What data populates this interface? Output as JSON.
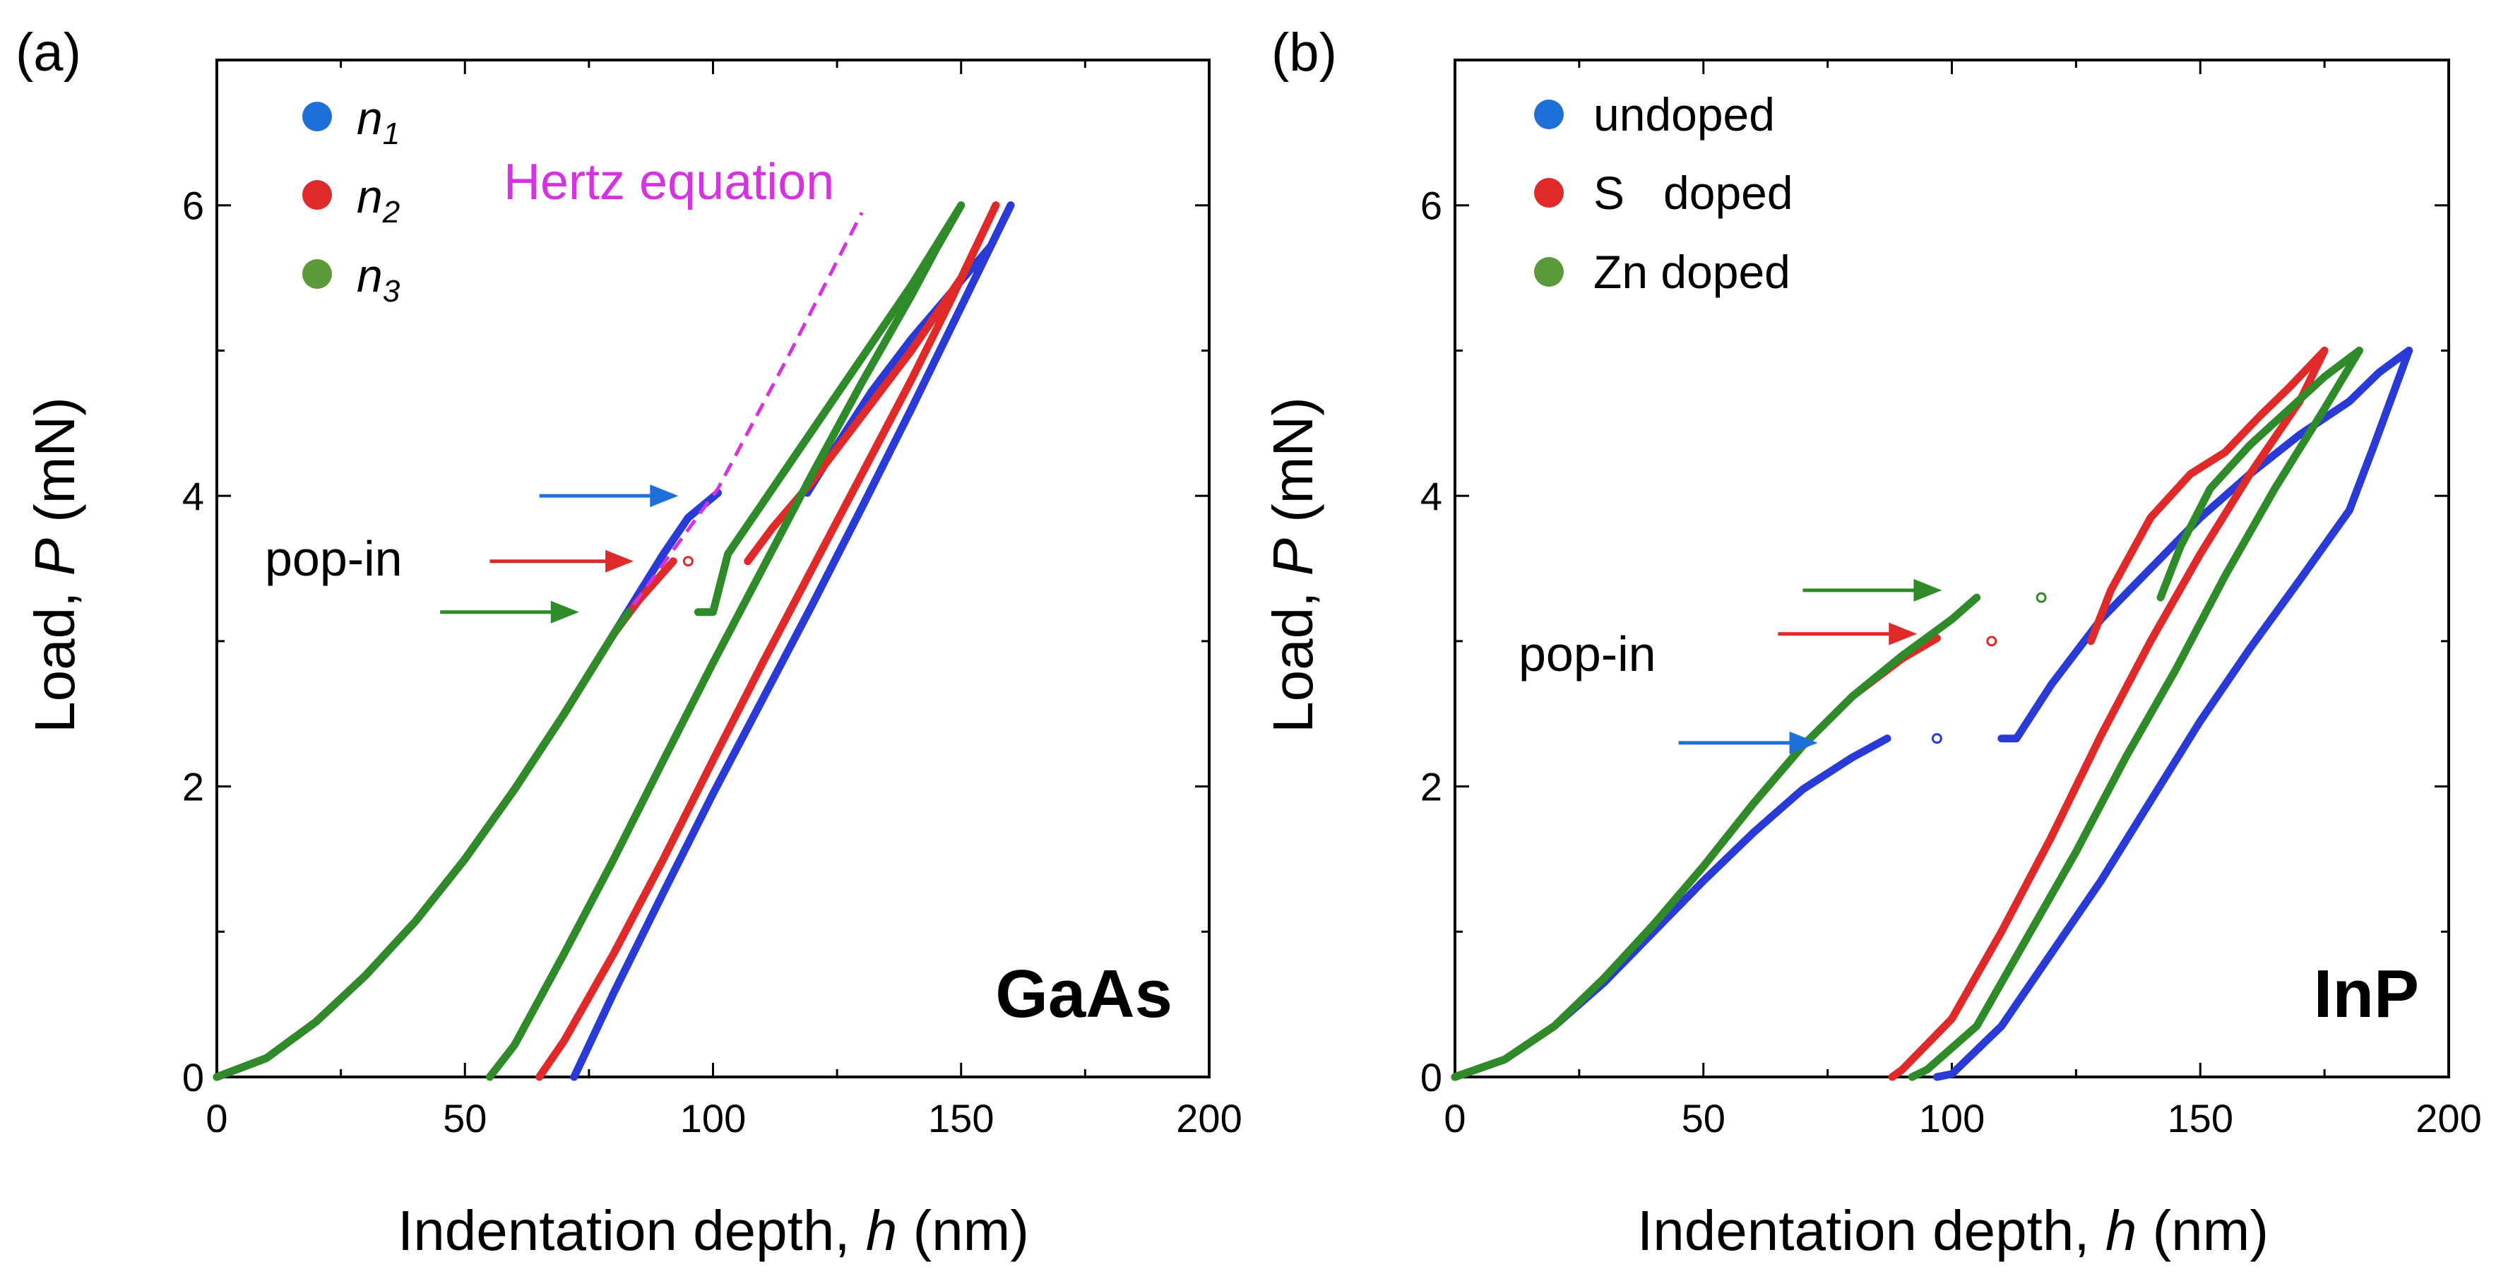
{
  "chart_data": [
    {
      "panel": "(a)",
      "type": "line",
      "material": "GaAs",
      "xlabel": "Indentation depth, h (nm)",
      "ylabel": "Load, P (mN)",
      "xlim": [
        0,
        200
      ],
      "ylim": [
        0,
        7
      ],
      "xticks": [
        0,
        50,
        100,
        150,
        200
      ],
      "yticks": [
        0,
        2,
        4,
        6
      ],
      "grid": false,
      "legend_position": "top-left",
      "legend": [
        {
          "label": "n",
          "sub": "1",
          "color": "#2a3ad6"
        },
        {
          "label": "n",
          "sub": "2",
          "color": "#e02a2a"
        },
        {
          "label": "n",
          "sub": "3",
          "color": "#2f8a2a"
        }
      ],
      "annotations": {
        "popin_label": "pop-in",
        "hertz_label": "Hertz equation",
        "hertz_line": {
          "x": [
            84,
            101,
            115,
            130
          ],
          "y": [
            3.25,
            4.05,
            4.95,
            5.95
          ],
          "color": "#d633e0"
        },
        "popin_arrows": [
          {
            "color": "#1e6fd8",
            "x0": 65,
            "x1": 93,
            "y": 4.0
          },
          {
            "color": "#e02a2a",
            "x0": 55,
            "x1": 84,
            "y": 3.55
          },
          {
            "color": "#2f8a2a",
            "x0": 45,
            "x1": 73,
            "y": 3.2
          }
        ]
      },
      "series": [
        {
          "name": "n1",
          "color": "#2a3ad6",
          "loading": {
            "x": [
              0,
              10,
              20,
              30,
              40,
              50,
              60,
              70,
              80,
              90,
              95,
              101
            ],
            "y": [
              0,
              0.13,
              0.38,
              0.7,
              1.07,
              1.5,
              1.98,
              2.5,
              3.05,
              3.6,
              3.85,
              4.02
            ]
          },
          "reload": {
            "x": [
              119,
              125,
              132,
              140,
              148,
              156,
              160
            ],
            "y": [
              4.02,
              4.35,
              4.72,
              5.08,
              5.4,
              5.72,
              6.0
            ]
          },
          "unloading": {
            "x": [
              160,
              150,
              140,
              130,
              120,
              110,
              100,
              90,
              80,
              72
            ],
            "y": [
              6.0,
              5.3,
              4.6,
              3.92,
              3.25,
              2.6,
              1.95,
              1.27,
              0.58,
              0
            ]
          }
        },
        {
          "name": "n2",
          "color": "#e02a2a",
          "loading": {
            "x": [
              0,
              10,
              20,
              30,
              40,
              50,
              60,
              70,
              80,
              85,
              92
            ],
            "y": [
              0,
              0.13,
              0.38,
              0.7,
              1.07,
              1.5,
              1.98,
              2.5,
              3.05,
              3.28,
              3.55
            ]
          },
          "gap_points": {
            "x": [
              95
            ],
            "y": [
              3.55
            ]
          },
          "reload": {
            "x": [
              107,
              112,
              120,
              130,
              140,
              150,
              157
            ],
            "y": [
              3.55,
              3.78,
              4.1,
              4.55,
              5.0,
              5.5,
              6.0
            ]
          },
          "unloading": {
            "x": [
              157,
              148,
              140,
              130,
              120,
              110,
              100,
              90,
              80,
              70,
              65
            ],
            "y": [
              6.0,
              5.35,
              4.8,
              4.15,
              3.5,
              2.85,
              2.18,
              1.5,
              0.85,
              0.25,
              0
            ]
          }
        },
        {
          "name": "n3",
          "color": "#2f8a2a",
          "loading": {
            "x": [
              0,
              10,
              20,
              30,
              40,
              50,
              60,
              70,
              80,
              83
            ],
            "y": [
              0,
              0.13,
              0.38,
              0.7,
              1.07,
              1.5,
              1.98,
              2.5,
              3.05,
              3.2
            ]
          },
          "reload": {
            "x": [
              97,
              100,
              103,
              110,
              120,
              130,
              140,
              150
            ],
            "y": [
              3.2,
              3.2,
              3.6,
              3.95,
              4.45,
              4.95,
              5.45,
              6.0
            ]
          },
          "unloading": {
            "x": [
              150,
              145,
              140,
              130,
              120,
              110,
              100,
              90,
              80,
              70,
              60,
              55
            ],
            "y": [
              6.0,
              5.7,
              5.38,
              4.78,
              4.15,
              3.5,
              2.85,
              2.18,
              1.5,
              0.85,
              0.22,
              0
            ]
          }
        }
      ]
    },
    {
      "panel": "(b)",
      "type": "line",
      "material": "InP",
      "xlabel": "Indentation depth, h (nm)",
      "ylabel": "Load, P (mN)",
      "xlim": [
        0,
        200
      ],
      "ylim": [
        0,
        7
      ],
      "xticks": [
        0,
        50,
        100,
        150,
        200
      ],
      "yticks": [
        0,
        2,
        4,
        6
      ],
      "grid": false,
      "legend_position": "top-left",
      "legend": [
        {
          "label": "undoped",
          "color": "#1e6fd8"
        },
        {
          "label": "S   doped",
          "color": "#e02a2a"
        },
        {
          "label": "Zn doped",
          "color": "#2f8a2a"
        }
      ],
      "annotations": {
        "popin_label": "pop-in",
        "popin_arrows": [
          {
            "color": "#2f8a2a",
            "x0": 70,
            "x1": 98,
            "y": 3.35
          },
          {
            "color": "#e02a2a",
            "x0": 65,
            "x1": 93,
            "y": 3.05
          },
          {
            "color": "#1e6fd8",
            "x0": 45,
            "x1": 73,
            "y": 2.3
          }
        ]
      },
      "series": [
        {
          "name": "undoped",
          "color": "#2a3ad6",
          "loading": {
            "x": [
              0,
              10,
              20,
              30,
              40,
              50,
              60,
              70,
              80,
              87
            ],
            "y": [
              0,
              0.12,
              0.35,
              0.65,
              1.0,
              1.35,
              1.68,
              1.98,
              2.2,
              2.33
            ]
          },
          "gap_points": {
            "x": [
              97
            ],
            "y": [
              2.33
            ]
          },
          "reload": {
            "x": [
              110,
              113,
              120,
              130,
              140,
              150,
              160,
              170,
              180,
              186,
              190,
              192
            ],
            "y": [
              2.33,
              2.33,
              2.7,
              3.15,
              3.5,
              3.85,
              4.15,
              4.42,
              4.65,
              4.85,
              4.95,
              5.0
            ]
          },
          "unloading": {
            "x": [
              192,
              185,
              180,
              170,
              160,
              150,
              140,
              130,
              120,
              110,
              100,
              97
            ],
            "y": [
              5.0,
              4.35,
              3.9,
              3.42,
              2.95,
              2.45,
              1.9,
              1.35,
              0.85,
              0.35,
              0.02,
              0
            ]
          }
        },
        {
          "name": "S doped",
          "color": "#e02a2a",
          "loading": {
            "x": [
              0,
              10,
              20,
              30,
              40,
              50,
              60,
              70,
              80,
              90,
              97
            ],
            "y": [
              0,
              0.12,
              0.35,
              0.68,
              1.05,
              1.45,
              1.88,
              2.28,
              2.62,
              2.88,
              3.02
            ]
          },
          "gap_points": {
            "x": [
              108
            ],
            "y": [
              3.0
            ]
          },
          "reload": {
            "x": [
              128,
              132,
              140,
              148,
              155,
              162,
              168,
              175
            ],
            "y": [
              3.0,
              3.35,
              3.85,
              4.15,
              4.3,
              4.55,
              4.75,
              5.0
            ]
          },
          "unloading": {
            "x": [
              175,
              170,
              160,
              150,
              140,
              130,
              120,
              110,
              100,
              90,
              88
            ],
            "y": [
              5.0,
              4.65,
              4.15,
              3.6,
              3.0,
              2.35,
              1.65,
              1.0,
              0.4,
              0.05,
              0
            ]
          }
        },
        {
          "name": "Zn doped",
          "color": "#2f8a2a",
          "loading": {
            "x": [
              0,
              10,
              20,
              30,
              40,
              50,
              60,
              70,
              80,
              90,
              100,
              105
            ],
            "y": [
              0,
              0.12,
              0.35,
              0.68,
              1.05,
              1.45,
              1.88,
              2.28,
              2.62,
              2.9,
              3.15,
              3.3
            ]
          },
          "gap_points": {
            "x": [
              118
            ],
            "y": [
              3.3
            ]
          },
          "reload": {
            "x": [
              142,
              146,
              152,
              160,
              168,
              175,
              182
            ],
            "y": [
              3.3,
              3.65,
              4.05,
              4.35,
              4.6,
              4.82,
              5.0
            ]
          },
          "unloading": {
            "x": [
              182,
              175,
              165,
              155,
              145,
              135,
              125,
              115,
              105,
              95,
              92
            ],
            "y": [
              5.0,
              4.6,
              4.05,
              3.45,
              2.8,
              2.2,
              1.55,
              0.95,
              0.35,
              0.05,
              0
            ]
          }
        }
      ]
    }
  ]
}
